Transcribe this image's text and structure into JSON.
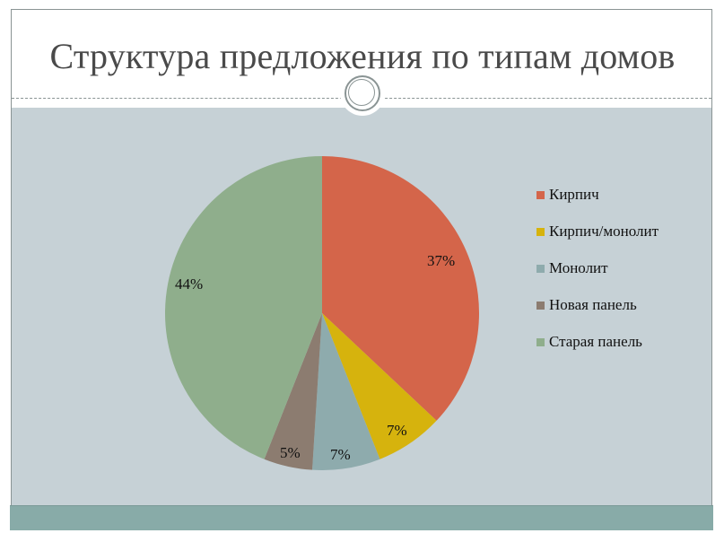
{
  "slide": {
    "title": "Структура предложения по типам домов"
  },
  "chart_data": {
    "type": "pie",
    "title": "Структура предложения по типам домов",
    "categories": [
      "Кирпич",
      "Кирпич/монолит",
      "Монолит",
      "Новая панель",
      "Старая панель"
    ],
    "values": [
      37,
      7,
      7,
      5,
      44
    ],
    "labels": [
      "37%",
      "7%",
      "7%",
      "5%",
      "44%"
    ],
    "colors": [
      "#d4654a",
      "#d6b30d",
      "#8eabad",
      "#8c7c70",
      "#8fae8c"
    ],
    "legend_position": "right",
    "start_angle": "12 o'clock, clockwise"
  },
  "legend": {
    "items": [
      {
        "label": "Кирпич",
        "color": "#d4654a"
      },
      {
        "label": "Кирпич/монолит",
        "color": "#d6b30d"
      },
      {
        "label": "Монолит",
        "color": "#8eabad"
      },
      {
        "label": "Новая панель",
        "color": "#8c7c70"
      },
      {
        "label": "Старая панель",
        "color": "#8fae8c"
      }
    ]
  }
}
